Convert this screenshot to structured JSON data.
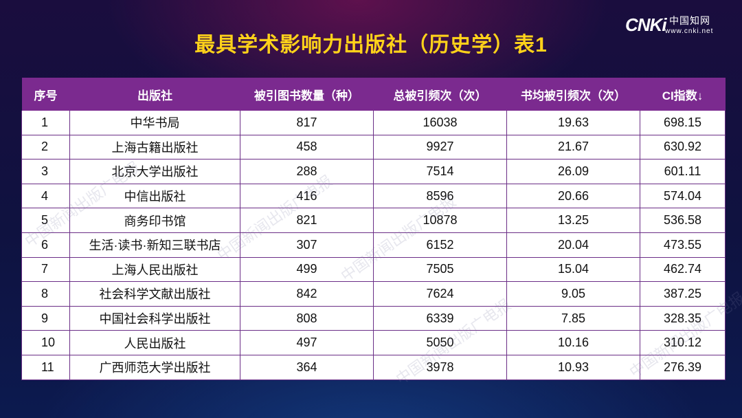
{
  "logo": {
    "mark": "CNKi",
    "cn_name": "中国知网",
    "url": "www.cnki.net"
  },
  "title": "最具学术影响力出版社（历史学）表1",
  "table": {
    "headers": [
      "序号",
      "出版社",
      "被引图书数量（种）",
      "总被引频次（次）",
      "书均被引频次（次）",
      "CI指数↓"
    ],
    "rows": [
      [
        "1",
        "中华书局",
        "817",
        "16038",
        "19.63",
        "698.15"
      ],
      [
        "2",
        "上海古籍出版社",
        "458",
        "9927",
        "21.67",
        "630.92"
      ],
      [
        "3",
        "北京大学出版社",
        "288",
        "7514",
        "26.09",
        "601.11"
      ],
      [
        "4",
        "中信出版社",
        "416",
        "8596",
        "20.66",
        "574.04"
      ],
      [
        "5",
        "商务印书馆",
        "821",
        "10878",
        "13.25",
        "536.58"
      ],
      [
        "6",
        "生活·读书·新知三联书店",
        "307",
        "6152",
        "20.04",
        "473.55"
      ],
      [
        "7",
        "上海人民出版社",
        "499",
        "7505",
        "15.04",
        "462.74"
      ],
      [
        "8",
        "社会科学文献出版社",
        "842",
        "7624",
        "9.05",
        "387.25"
      ],
      [
        "9",
        "中国社会科学出版社",
        "808",
        "6339",
        "7.85",
        "328.35"
      ],
      [
        "10",
        "人民出版社",
        "497",
        "5050",
        "10.16",
        "310.12"
      ],
      [
        "11",
        "广西师范大学出版社",
        "364",
        "3978",
        "10.93",
        "276.39"
      ]
    ]
  },
  "watermark": "中国新闻出版广电报"
}
